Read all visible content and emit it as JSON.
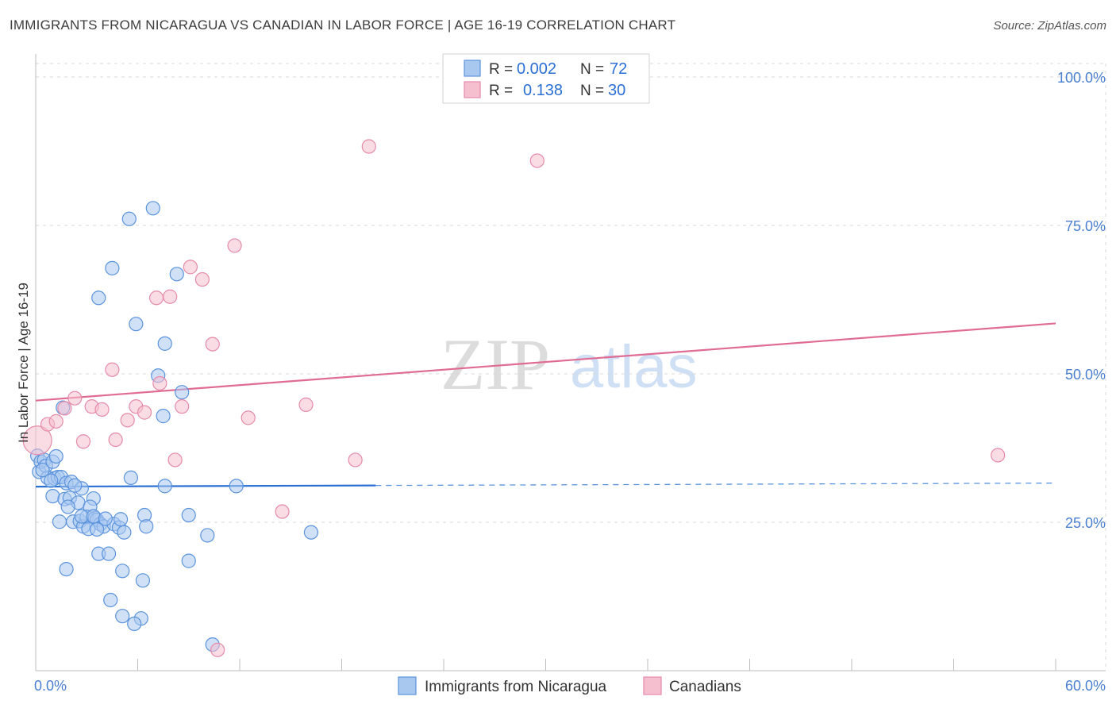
{
  "title": "IMMIGRANTS FROM NICARAGUA VS CANADIAN IN LABOR FORCE | AGE 16-19 CORRELATION CHART",
  "source": "Source: ZipAtlas.com",
  "watermark": {
    "zip": "ZIP",
    "atlas": "atlas"
  },
  "colors": {
    "blue_fill": "#a9c8f0",
    "blue_stroke": "#5b93dc",
    "blue_line": "#2a6fd4",
    "pink_fill": "#f6bfd0",
    "pink_stroke": "#e68aaa",
    "pink_line": "#e06b93",
    "tick_text": "#4a7fd0",
    "grid": "#d8d8d8"
  },
  "legend": {
    "rows": [
      {
        "r_label": "R =",
        "r_value": "0.002",
        "n_label": "N =",
        "n_value": "72"
      },
      {
        "r_label": "R =",
        "r_value": "0.138",
        "n_label": "N =",
        "n_value": "30"
      }
    ]
  },
  "bottom_legend": [
    "Immigrants from Nicaragua",
    "Canadians"
  ],
  "chart_data": {
    "type": "scatter",
    "xlabel": "",
    "ylabel": "In Labor Force | Age 16-19",
    "xlim": [
      0,
      60
    ],
    "ylim": [
      0,
      100
    ],
    "x_tick_labels": [
      {
        "value": 0,
        "label": "0.0%"
      },
      {
        "value": 60,
        "label": "60.0%"
      }
    ],
    "y_tick_labels": [
      {
        "value": 25,
        "label": "25.0%"
      },
      {
        "value": 50,
        "label": "50.0%"
      },
      {
        "value": 75,
        "label": "75.0%"
      },
      {
        "value": 100,
        "label": "100.0%"
      }
    ],
    "series": [
      {
        "name": "Immigrants from Nicaragua",
        "color": "#a9c8f0",
        "points": [
          [
            0.1,
            36.2
          ],
          [
            0.2,
            33.5
          ],
          [
            0.3,
            35.2
          ],
          [
            0.5,
            35.5
          ],
          [
            0.6,
            34.5
          ],
          [
            0.7,
            32.5
          ],
          [
            1.0,
            35.2
          ],
          [
            1.2,
            36.1
          ],
          [
            1.1,
            32.4
          ],
          [
            1.3,
            32.6
          ],
          [
            1.0,
            29.4
          ],
          [
            1.5,
            32.6
          ],
          [
            1.8,
            31.6
          ],
          [
            2.1,
            31.8
          ],
          [
            2.7,
            30.7
          ],
          [
            1.7,
            28.9
          ],
          [
            2.0,
            29.1
          ],
          [
            2.5,
            28.3
          ],
          [
            3.4,
            29.0
          ],
          [
            1.9,
            27.6
          ],
          [
            3.2,
            27.6
          ],
          [
            1.4,
            25.1
          ],
          [
            2.2,
            25.1
          ],
          [
            2.6,
            25.2
          ],
          [
            2.8,
            24.3
          ],
          [
            3.0,
            25.9
          ],
          [
            3.5,
            25.7
          ],
          [
            3.6,
            25.4
          ],
          [
            3.8,
            24.7
          ],
          [
            4.0,
            24.3
          ],
          [
            3.1,
            23.9
          ],
          [
            3.6,
            23.8
          ],
          [
            4.6,
            24.7
          ],
          [
            4.9,
            24.1
          ],
          [
            5.0,
            25.5
          ],
          [
            5.2,
            23.3
          ],
          [
            3.7,
            19.7
          ],
          [
            4.3,
            19.7
          ],
          [
            6.4,
            26.2
          ],
          [
            6.5,
            24.3
          ],
          [
            9.0,
            26.2
          ],
          [
            10.1,
            22.8
          ],
          [
            16.2,
            23.3
          ],
          [
            1.8,
            17.1
          ],
          [
            5.1,
            16.8
          ],
          [
            6.3,
            15.2
          ],
          [
            9.0,
            18.5
          ],
          [
            4.4,
            11.9
          ],
          [
            5.1,
            9.2
          ],
          [
            6.2,
            8.8
          ],
          [
            5.8,
            7.9
          ],
          [
            10.4,
            4.4
          ],
          [
            5.6,
            32.5
          ],
          [
            7.6,
            31.1
          ],
          [
            11.8,
            31.1
          ],
          [
            1.6,
            44.3
          ],
          [
            7.5,
            42.9
          ],
          [
            8.6,
            46.9
          ],
          [
            7.2,
            49.7
          ],
          [
            5.9,
            58.4
          ],
          [
            7.6,
            55.1
          ],
          [
            3.7,
            62.8
          ],
          [
            4.5,
            67.8
          ],
          [
            8.3,
            66.8
          ],
          [
            5.5,
            76.1
          ],
          [
            6.9,
            77.9
          ],
          [
            2.7,
            26.0
          ],
          [
            3.4,
            26.0
          ],
          [
            4.1,
            25.6
          ],
          [
            0.4,
            33.8
          ],
          [
            0.9,
            32.0
          ],
          [
            2.3,
            31.2
          ]
        ]
      },
      {
        "name": "Canadians",
        "color": "#f6bfd0",
        "points": [
          [
            0.1,
            38.8
          ],
          [
            0.7,
            41.5
          ],
          [
            1.2,
            42.0
          ],
          [
            1.7,
            44.2
          ],
          [
            2.3,
            45.9
          ],
          [
            2.8,
            38.6
          ],
          [
            3.3,
            44.5
          ],
          [
            3.9,
            44.0
          ],
          [
            4.5,
            50.7
          ],
          [
            4.7,
            38.9
          ],
          [
            5.4,
            42.2
          ],
          [
            5.9,
            44.5
          ],
          [
            6.4,
            43.5
          ],
          [
            7.1,
            62.8
          ],
          [
            7.3,
            48.4
          ],
          [
            7.9,
            63.0
          ],
          [
            8.2,
            35.5
          ],
          [
            8.6,
            44.5
          ],
          [
            9.1,
            68.0
          ],
          [
            9.8,
            65.9
          ],
          [
            10.4,
            55.0
          ],
          [
            11.7,
            71.6
          ],
          [
            12.5,
            42.6
          ],
          [
            14.5,
            26.8
          ],
          [
            15.9,
            44.8
          ],
          [
            18.8,
            35.5
          ],
          [
            19.6,
            88.3
          ],
          [
            29.5,
            85.9
          ],
          [
            56.6,
            36.3
          ],
          [
            10.7,
            3.5
          ]
        ]
      }
    ],
    "trend_lines": [
      {
        "series": "Immigrants from Nicaragua",
        "x0": 0,
        "y0": 31.0,
        "x1": 60,
        "y1": 31.6,
        "solid_until": 20
      },
      {
        "series": "Canadians",
        "x0": 0,
        "y0": 45.5,
        "x1": 60,
        "y1": 58.5
      }
    ]
  }
}
